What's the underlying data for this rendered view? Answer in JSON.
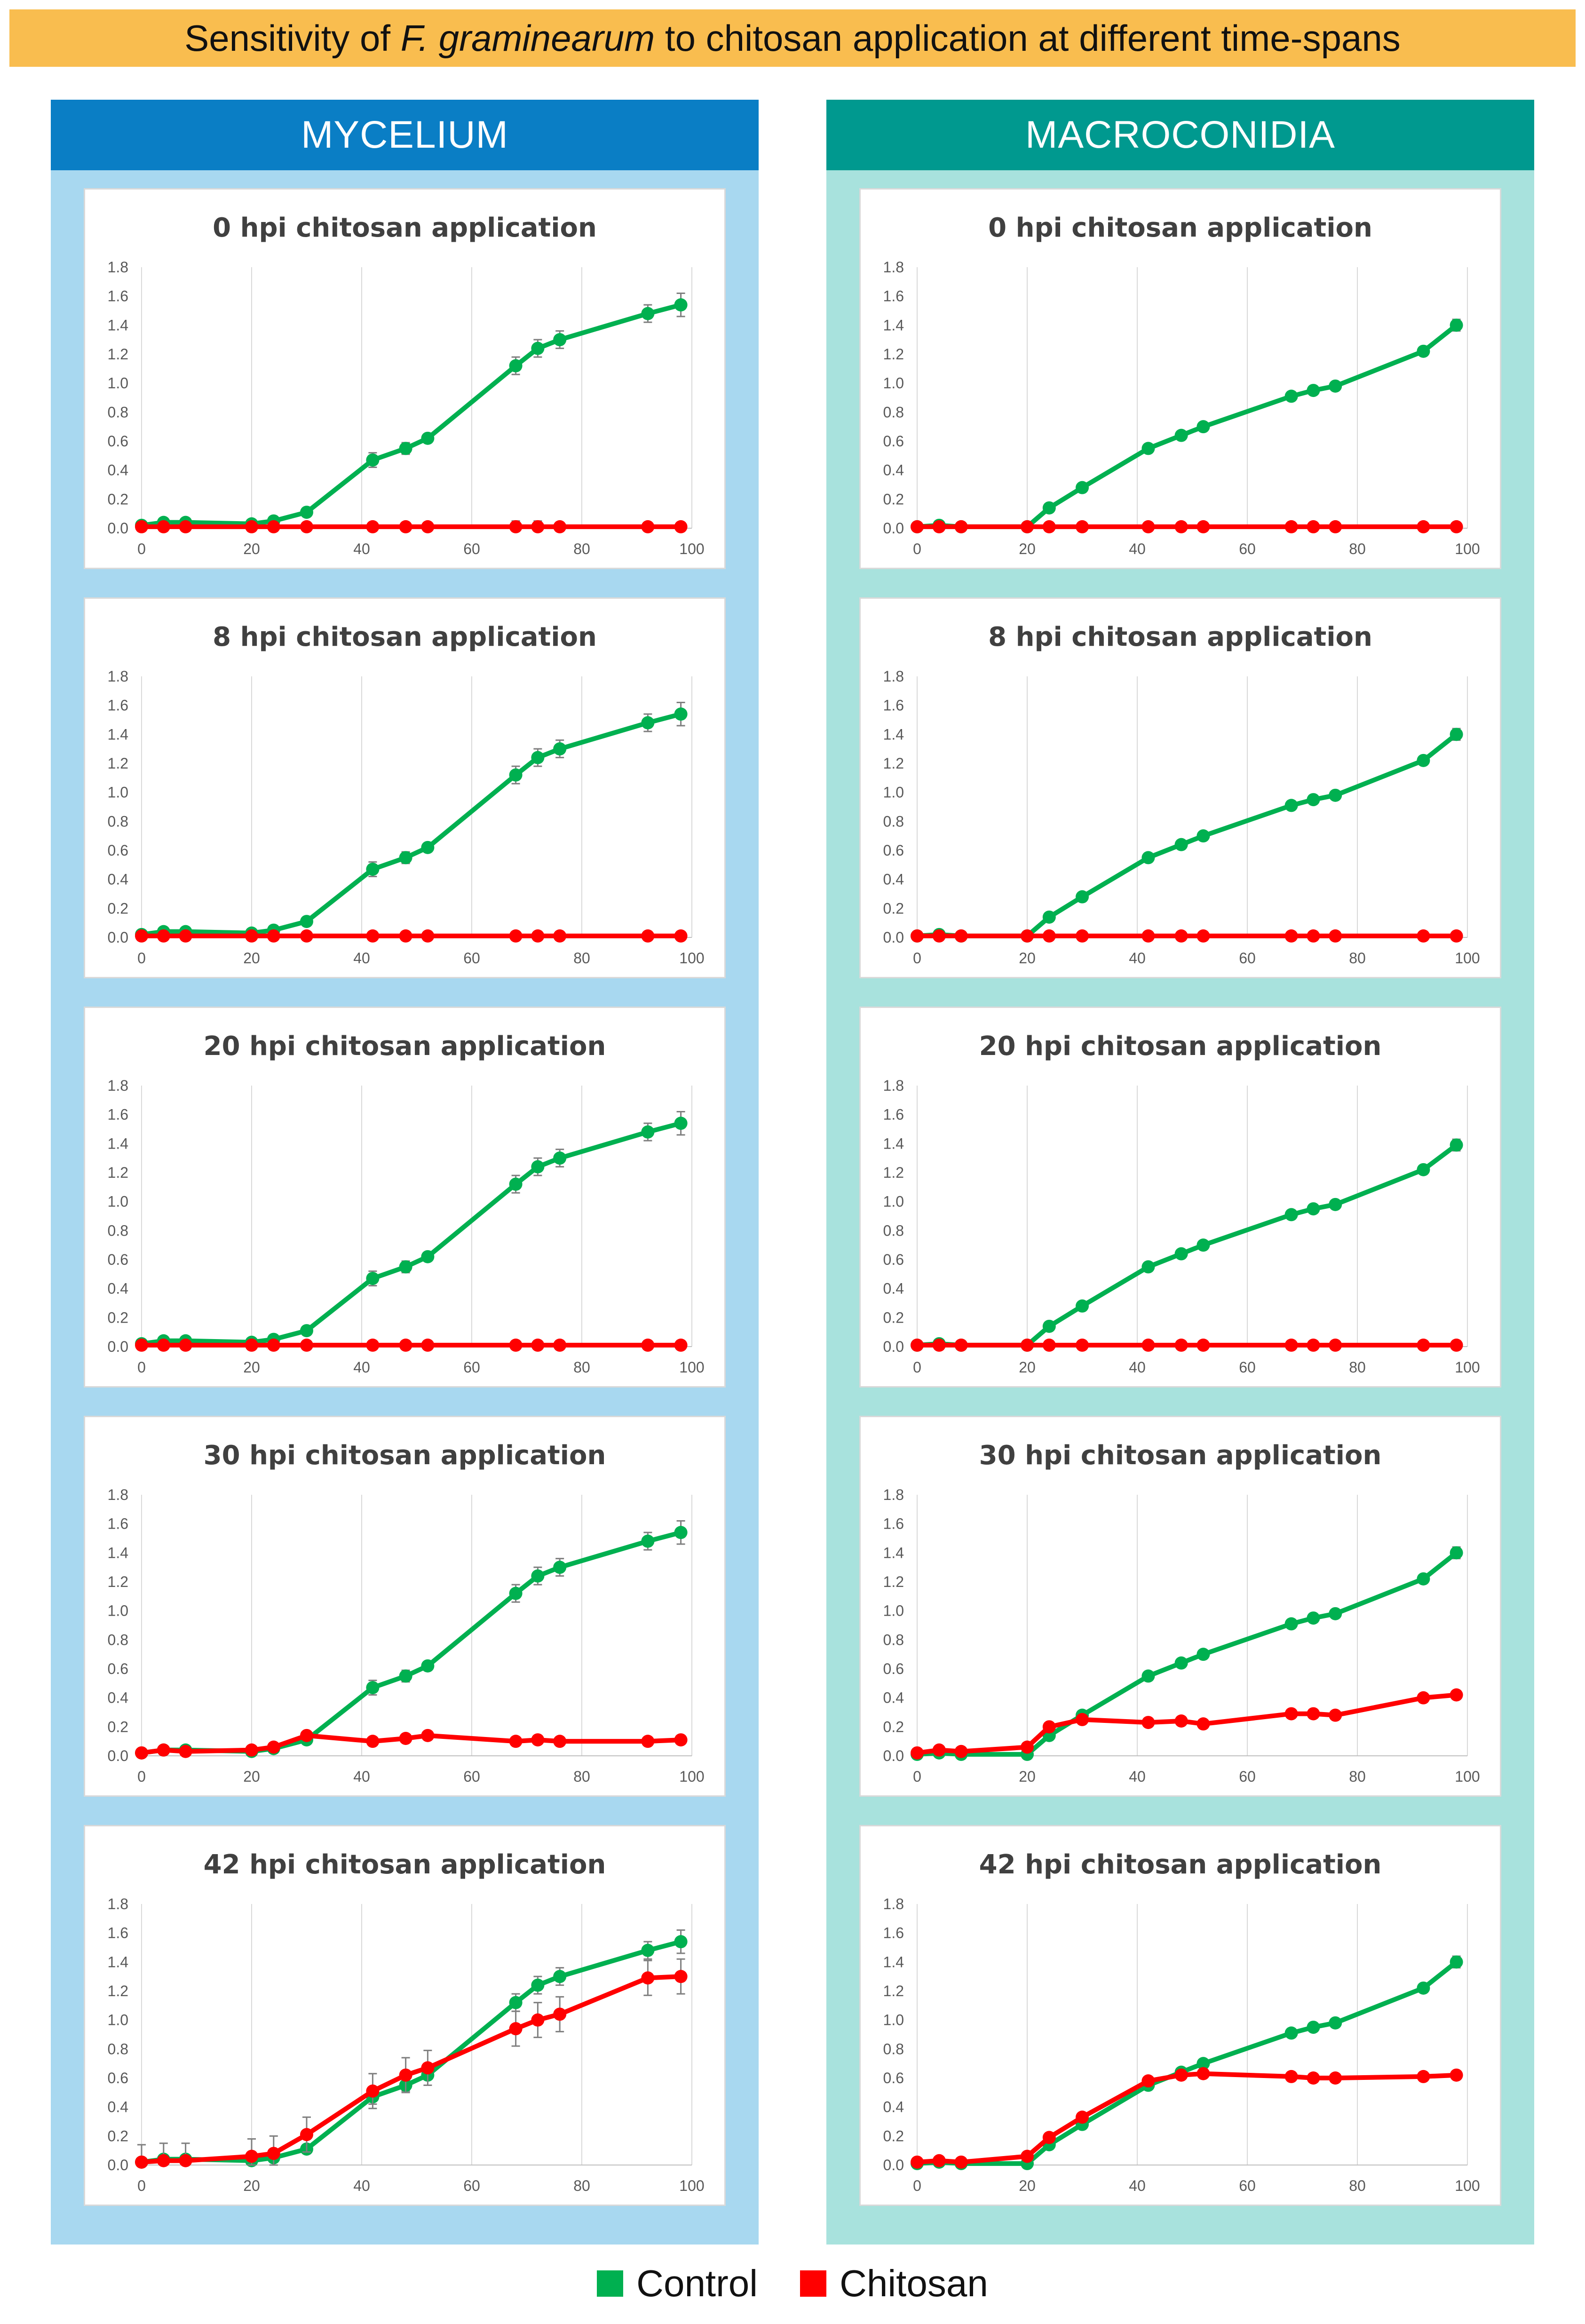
{
  "title": {
    "pre": "Sensitivity of ",
    "italic": "F. graminearum",
    "post": " to chitosan application at different time-spans",
    "bg_color": "#f9bd4f"
  },
  "columns": [
    {
      "id": "mycelium",
      "label": "MYCELIUM",
      "header_color": "#0a7ec5",
      "panel_color": "#a8d8f0"
    },
    {
      "id": "macroconidia",
      "label": "MACROCONIDIA",
      "header_color": "#00998f",
      "panel_color": "#a8e2dd"
    }
  ],
  "legend": [
    {
      "name": "Control",
      "color": "#00b050"
    },
    {
      "name": "Chitosan",
      "color": "#ff0000"
    }
  ],
  "axes": {
    "x_ticks": [
      "0",
      "20",
      "40",
      "60",
      "80",
      "100"
    ],
    "y_ticks": [
      "0.0",
      "0.2",
      "0.4",
      "0.6",
      "0.8",
      "1.0",
      "1.2",
      "1.4",
      "1.6",
      "1.8"
    ],
    "xlim": [
      0,
      100
    ],
    "ylim": [
      0,
      1.8
    ],
    "grid": "vertical"
  },
  "chart_data": [
    {
      "column": "mycelium",
      "title": "0 hpi chitosan application",
      "type": "line",
      "series": [
        {
          "name": "Control",
          "color": "#00b050",
          "x": [
            0,
            4,
            8,
            20,
            24,
            30,
            42,
            48,
            52,
            68,
            72,
            76,
            92,
            98
          ],
          "y": [
            0.02,
            0.04,
            0.04,
            0.03,
            0.05,
            0.11,
            0.47,
            0.55,
            0.62,
            1.12,
            1.24,
            1.3,
            1.48,
            1.54
          ],
          "err": [
            0.01,
            0.01,
            0.01,
            0.01,
            0.02,
            0.03,
            0.05,
            0.04,
            0.03,
            0.06,
            0.06,
            0.06,
            0.06,
            0.08
          ]
        },
        {
          "name": "Chitosan",
          "color": "#ff0000",
          "x": [
            0,
            4,
            8,
            20,
            24,
            30,
            42,
            48,
            52,
            68,
            72,
            76,
            92,
            98
          ],
          "y": [
            0.01,
            0.01,
            0.01,
            0.01,
            0.01,
            0.01,
            0.01,
            0.01,
            0.01,
            0.01,
            0.01,
            0.01,
            0.01,
            0.01
          ],
          "err": [
            0,
            0,
            0,
            0,
            0,
            0,
            0,
            0,
            0,
            0.04,
            0.04,
            0.03,
            0,
            0
          ]
        }
      ]
    },
    {
      "column": "mycelium",
      "title": "8 hpi chitosan application",
      "type": "line",
      "series": [
        {
          "name": "Control",
          "color": "#00b050",
          "x": [
            0,
            4,
            8,
            20,
            24,
            30,
            42,
            48,
            52,
            68,
            72,
            76,
            92,
            98
          ],
          "y": [
            0.02,
            0.04,
            0.04,
            0.03,
            0.05,
            0.11,
            0.47,
            0.55,
            0.62,
            1.12,
            1.24,
            1.3,
            1.48,
            1.54
          ],
          "err": [
            0.01,
            0.01,
            0.01,
            0.01,
            0.02,
            0.03,
            0.05,
            0.04,
            0.03,
            0.06,
            0.06,
            0.06,
            0.06,
            0.08
          ]
        },
        {
          "name": "Chitosan",
          "color": "#ff0000",
          "x": [
            0,
            4,
            8,
            20,
            24,
            30,
            42,
            48,
            52,
            68,
            72,
            76,
            92,
            98
          ],
          "y": [
            0.01,
            0.01,
            0.01,
            0.01,
            0.01,
            0.01,
            0.01,
            0.01,
            0.01,
            0.01,
            0.01,
            0.01,
            0.01,
            0.01
          ],
          "err": [
            0,
            0,
            0,
            0,
            0,
            0,
            0,
            0,
            0,
            0,
            0,
            0,
            0,
            0
          ]
        }
      ]
    },
    {
      "column": "mycelium",
      "title": "20 hpi chitosan application",
      "type": "line",
      "series": [
        {
          "name": "Control",
          "color": "#00b050",
          "x": [
            0,
            4,
            8,
            20,
            24,
            30,
            42,
            48,
            52,
            68,
            72,
            76,
            92,
            98
          ],
          "y": [
            0.02,
            0.04,
            0.04,
            0.03,
            0.05,
            0.11,
            0.47,
            0.55,
            0.62,
            1.12,
            1.24,
            1.3,
            1.48,
            1.54
          ],
          "err": [
            0.01,
            0.01,
            0.01,
            0.01,
            0.02,
            0.03,
            0.05,
            0.04,
            0.03,
            0.06,
            0.06,
            0.06,
            0.06,
            0.08
          ]
        },
        {
          "name": "Chitosan",
          "color": "#ff0000",
          "x": [
            0,
            4,
            8,
            20,
            24,
            30,
            42,
            48,
            52,
            68,
            72,
            76,
            92,
            98
          ],
          "y": [
            0.01,
            0.01,
            0.01,
            0.01,
            0.01,
            0.01,
            0.01,
            0.01,
            0.01,
            0.01,
            0.01,
            0.01,
            0.01,
            0.01
          ],
          "err": [
            0,
            0,
            0,
            0,
            0,
            0,
            0,
            0,
            0,
            0,
            0,
            0,
            0,
            0
          ]
        }
      ]
    },
    {
      "column": "mycelium",
      "title": "30 hpi chitosan application",
      "type": "line",
      "series": [
        {
          "name": "Control",
          "color": "#00b050",
          "x": [
            0,
            4,
            8,
            20,
            24,
            30,
            42,
            48,
            52,
            68,
            72,
            76,
            92,
            98
          ],
          "y": [
            0.02,
            0.04,
            0.04,
            0.03,
            0.05,
            0.11,
            0.47,
            0.55,
            0.62,
            1.12,
            1.24,
            1.3,
            1.48,
            1.54
          ],
          "err": [
            0.01,
            0.01,
            0.01,
            0.01,
            0.02,
            0.03,
            0.05,
            0.04,
            0.03,
            0.06,
            0.06,
            0.06,
            0.06,
            0.08
          ]
        },
        {
          "name": "Chitosan",
          "color": "#ff0000",
          "x": [
            0,
            4,
            8,
            20,
            24,
            30,
            42,
            48,
            52,
            68,
            72,
            76,
            92,
            98
          ],
          "y": [
            0.02,
            0.04,
            0.03,
            0.04,
            0.06,
            0.14,
            0.1,
            0.12,
            0.14,
            0.1,
            0.11,
            0.1,
            0.1,
            0.11
          ],
          "err": [
            0.01,
            0.01,
            0.01,
            0.01,
            0.01,
            0.02,
            0.01,
            0.01,
            0.01,
            0.01,
            0.01,
            0.01,
            0.01,
            0.01
          ]
        }
      ]
    },
    {
      "column": "mycelium",
      "title": "42 hpi chitosan application",
      "type": "line",
      "series": [
        {
          "name": "Control",
          "color": "#00b050",
          "x": [
            0,
            4,
            8,
            20,
            24,
            30,
            42,
            48,
            52,
            68,
            72,
            76,
            92,
            98
          ],
          "y": [
            0.02,
            0.04,
            0.04,
            0.03,
            0.05,
            0.11,
            0.47,
            0.55,
            0.62,
            1.12,
            1.24,
            1.3,
            1.48,
            1.54
          ],
          "err": [
            0.01,
            0.01,
            0.01,
            0.01,
            0.02,
            0.03,
            0.05,
            0.04,
            0.03,
            0.06,
            0.06,
            0.06,
            0.06,
            0.08
          ]
        },
        {
          "name": "Chitosan",
          "color": "#ff0000",
          "x": [
            0,
            4,
            8,
            20,
            24,
            30,
            42,
            48,
            52,
            68,
            72,
            76,
            92,
            98
          ],
          "y": [
            0.02,
            0.03,
            0.03,
            0.06,
            0.08,
            0.21,
            0.51,
            0.62,
            0.67,
            0.94,
            1.0,
            1.04,
            1.29,
            1.3
          ],
          "err": [
            0.12,
            0.12,
            0.12,
            0.12,
            0.12,
            0.12,
            0.12,
            0.12,
            0.12,
            0.12,
            0.12,
            0.12,
            0.12,
            0.12
          ]
        }
      ]
    },
    {
      "column": "macroconidia",
      "title": "0 hpi chitosan application",
      "type": "line",
      "series": [
        {
          "name": "Control",
          "color": "#00b050",
          "x": [
            0,
            4,
            8,
            20,
            24,
            30,
            42,
            48,
            52,
            68,
            72,
            76,
            92,
            98
          ],
          "y": [
            0.01,
            0.02,
            0.01,
            0.01,
            0.14,
            0.28,
            0.55,
            0.64,
            0.7,
            0.91,
            0.95,
            0.98,
            1.22,
            1.4
          ],
          "err": [
            0.01,
            0.01,
            0.01,
            0.01,
            0.02,
            0.02,
            0.02,
            0.02,
            0.02,
            0.02,
            0.02,
            0.02,
            0.03,
            0.04
          ]
        },
        {
          "name": "Chitosan",
          "color": "#ff0000",
          "x": [
            0,
            4,
            8,
            20,
            24,
            30,
            42,
            48,
            52,
            68,
            72,
            76,
            92,
            98
          ],
          "y": [
            0.01,
            0.01,
            0.01,
            0.01,
            0.01,
            0.01,
            0.01,
            0.01,
            0.01,
            0.01,
            0.01,
            0.01,
            0.01,
            0.01
          ],
          "err": [
            0,
            0,
            0,
            0,
            0,
            0,
            0,
            0,
            0,
            0,
            0,
            0,
            0,
            0
          ]
        }
      ]
    },
    {
      "column": "macroconidia",
      "title": "8 hpi chitosan application",
      "type": "line",
      "series": [
        {
          "name": "Control",
          "color": "#00b050",
          "x": [
            0,
            4,
            8,
            20,
            24,
            30,
            42,
            48,
            52,
            68,
            72,
            76,
            92,
            98
          ],
          "y": [
            0.01,
            0.02,
            0.01,
            0.01,
            0.14,
            0.28,
            0.55,
            0.64,
            0.7,
            0.91,
            0.95,
            0.98,
            1.22,
            1.4
          ],
          "err": [
            0.01,
            0.01,
            0.01,
            0.01,
            0.02,
            0.02,
            0.02,
            0.02,
            0.02,
            0.02,
            0.02,
            0.02,
            0.03,
            0.04
          ]
        },
        {
          "name": "Chitosan",
          "color": "#ff0000",
          "x": [
            0,
            4,
            8,
            20,
            24,
            30,
            42,
            48,
            52,
            68,
            72,
            76,
            92,
            98
          ],
          "y": [
            0.01,
            0.01,
            0.01,
            0.01,
            0.01,
            0.01,
            0.01,
            0.01,
            0.01,
            0.01,
            0.01,
            0.01,
            0.01,
            0.01
          ],
          "err": [
            0,
            0,
            0,
            0,
            0,
            0,
            0,
            0,
            0,
            0,
            0,
            0,
            0,
            0
          ]
        }
      ]
    },
    {
      "column": "macroconidia",
      "title": "20 hpi chitosan application",
      "type": "line",
      "series": [
        {
          "name": "Control",
          "color": "#00b050",
          "x": [
            0,
            4,
            8,
            20,
            24,
            30,
            42,
            48,
            52,
            68,
            72,
            76,
            92,
            98
          ],
          "y": [
            0.01,
            0.02,
            0.01,
            0.01,
            0.14,
            0.28,
            0.55,
            0.64,
            0.7,
            0.91,
            0.95,
            0.98,
            1.22,
            1.39
          ],
          "err": [
            0.01,
            0.01,
            0.01,
            0.01,
            0.02,
            0.02,
            0.02,
            0.02,
            0.02,
            0.02,
            0.02,
            0.02,
            0.03,
            0.04
          ]
        },
        {
          "name": "Chitosan",
          "color": "#ff0000",
          "x": [
            0,
            4,
            8,
            20,
            24,
            30,
            42,
            48,
            52,
            68,
            72,
            76,
            92,
            98
          ],
          "y": [
            0.01,
            0.01,
            0.01,
            0.01,
            0.01,
            0.01,
            0.01,
            0.01,
            0.01,
            0.01,
            0.01,
            0.01,
            0.01,
            0.01
          ],
          "err": [
            0,
            0,
            0,
            0,
            0,
            0,
            0,
            0,
            0,
            0.02,
            0.02,
            0.02,
            0,
            0
          ]
        }
      ]
    },
    {
      "column": "macroconidia",
      "title": "30 hpi chitosan application",
      "type": "line",
      "series": [
        {
          "name": "Control",
          "color": "#00b050",
          "x": [
            0,
            4,
            8,
            20,
            24,
            30,
            42,
            48,
            52,
            68,
            72,
            76,
            92,
            98
          ],
          "y": [
            0.01,
            0.02,
            0.01,
            0.01,
            0.14,
            0.28,
            0.55,
            0.64,
            0.7,
            0.91,
            0.95,
            0.98,
            1.22,
            1.4
          ],
          "err": [
            0.01,
            0.01,
            0.01,
            0.01,
            0.02,
            0.02,
            0.02,
            0.02,
            0.02,
            0.02,
            0.02,
            0.02,
            0.03,
            0.04
          ]
        },
        {
          "name": "Chitosan",
          "color": "#ff0000",
          "x": [
            0,
            4,
            8,
            20,
            24,
            30,
            42,
            48,
            52,
            68,
            72,
            76,
            92,
            98
          ],
          "y": [
            0.02,
            0.04,
            0.03,
            0.06,
            0.2,
            0.25,
            0.23,
            0.24,
            0.22,
            0.29,
            0.29,
            0.28,
            0.4,
            0.42
          ],
          "err": [
            0.01,
            0.01,
            0.01,
            0.01,
            0.02,
            0.02,
            0.02,
            0.02,
            0.02,
            0.02,
            0.02,
            0.02,
            0.02,
            0.02
          ]
        }
      ]
    },
    {
      "column": "macroconidia",
      "title": "42 hpi chitosan application",
      "type": "line",
      "series": [
        {
          "name": "Control",
          "color": "#00b050",
          "x": [
            0,
            4,
            8,
            20,
            24,
            30,
            42,
            48,
            52,
            68,
            72,
            76,
            92,
            98
          ],
          "y": [
            0.01,
            0.02,
            0.01,
            0.01,
            0.14,
            0.28,
            0.55,
            0.64,
            0.7,
            0.91,
            0.95,
            0.98,
            1.22,
            1.4
          ],
          "err": [
            0.01,
            0.01,
            0.01,
            0.01,
            0.02,
            0.02,
            0.02,
            0.02,
            0.02,
            0.02,
            0.02,
            0.02,
            0.03,
            0.04
          ]
        },
        {
          "name": "Chitosan",
          "color": "#ff0000",
          "x": [
            0,
            4,
            8,
            20,
            24,
            30,
            42,
            48,
            52,
            68,
            72,
            76,
            92,
            98
          ],
          "y": [
            0.02,
            0.03,
            0.02,
            0.06,
            0.19,
            0.33,
            0.58,
            0.62,
            0.63,
            0.61,
            0.6,
            0.6,
            0.61,
            0.62
          ],
          "err": [
            0.01,
            0.01,
            0.01,
            0.01,
            0.02,
            0.02,
            0.02,
            0.02,
            0.02,
            0.02,
            0.02,
            0.02,
            0.02,
            0.02
          ]
        }
      ]
    }
  ]
}
